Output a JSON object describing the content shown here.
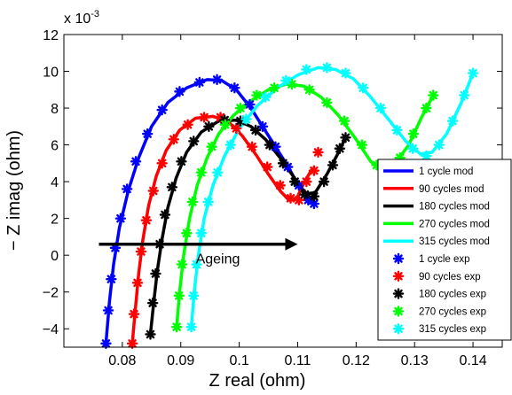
{
  "chart_data": {
    "type": "line",
    "title": "",
    "xlabel": "Z real (ohm)",
    "ylabel": "− Z imag (ohm)",
    "y_exponent_label": "x 10",
    "y_exponent_power": "-3",
    "xlim": [
      0.07,
      0.145
    ],
    "ylim": [
      -5,
      12
    ],
    "x_ticks": [
      0.08,
      0.09,
      0.1,
      0.11,
      0.12,
      0.13,
      0.14
    ],
    "x_tick_labels": [
      "0.08",
      "0.09",
      "0.1",
      "0.11",
      "0.12",
      "0.13",
      "0.14"
    ],
    "y_ticks": [
      -4,
      -2,
      0,
      2,
      4,
      6,
      8,
      10,
      12
    ],
    "y_tick_labels": [
      "−4",
      "−2",
      "0",
      "2",
      "4",
      "6",
      "8",
      "10",
      "12"
    ],
    "grid": false,
    "legend_position": "right",
    "annotation": {
      "text": "Ageing",
      "arrow_from": [
        0.076,
        0.6
      ],
      "arrow_to": [
        0.11,
        0.6
      ]
    },
    "series": [
      {
        "name": "1 cycle mod",
        "kind": "line",
        "color": "#0000ff",
        "points": [
          [
            0.0772,
            -4.8
          ],
          [
            0.0778,
            -2.5
          ],
          [
            0.0785,
            -0.5
          ],
          [
            0.0795,
            1.5
          ],
          [
            0.081,
            3.5
          ],
          [
            0.0828,
            5.3
          ],
          [
            0.085,
            7.0
          ],
          [
            0.0878,
            8.3
          ],
          [
            0.091,
            9.1
          ],
          [
            0.0945,
            9.55
          ],
          [
            0.097,
            9.5
          ],
          [
            0.0995,
            9.0
          ],
          [
            0.102,
            8.0
          ],
          [
            0.104,
            7.0
          ],
          [
            0.106,
            6.0
          ],
          [
            0.108,
            5.0
          ],
          [
            0.1098,
            4.0
          ],
          [
            0.111,
            3.4
          ],
          [
            0.112,
            3.0
          ],
          [
            0.113,
            3.1
          ]
        ]
      },
      {
        "name": "90 cycles mod",
        "kind": "line",
        "color": "#ff0000",
        "points": [
          [
            0.0817,
            -4.8
          ],
          [
            0.0822,
            -3.0
          ],
          [
            0.0828,
            -1.0
          ],
          [
            0.0835,
            0.8
          ],
          [
            0.0845,
            2.7
          ],
          [
            0.0858,
            4.3
          ],
          [
            0.0875,
            5.7
          ],
          [
            0.0898,
            6.8
          ],
          [
            0.0925,
            7.45
          ],
          [
            0.0955,
            7.55
          ],
          [
            0.098,
            7.3
          ],
          [
            0.1005,
            6.5
          ],
          [
            0.103,
            5.4
          ],
          [
            0.105,
            4.4
          ],
          [
            0.107,
            3.5
          ],
          [
            0.1085,
            3.0
          ],
          [
            0.1098,
            3.05
          ],
          [
            0.111,
            3.9
          ],
          [
            0.1125,
            4.7
          ]
        ]
      },
      {
        "name": "180 cycles mod",
        "kind": "line",
        "color": "#000000",
        "points": [
          [
            0.0848,
            -4.3
          ],
          [
            0.0854,
            -2.5
          ],
          [
            0.086,
            -0.8
          ],
          [
            0.0868,
            0.9
          ],
          [
            0.0878,
            2.6
          ],
          [
            0.0892,
            4.2
          ],
          [
            0.091,
            5.6
          ],
          [
            0.0935,
            6.7
          ],
          [
            0.0965,
            7.3
          ],
          [
            0.0995,
            7.35
          ],
          [
            0.102,
            7.0
          ],
          [
            0.1045,
            6.3
          ],
          [
            0.107,
            5.3
          ],
          [
            0.109,
            4.4
          ],
          [
            0.1105,
            3.7
          ],
          [
            0.1115,
            3.35
          ],
          [
            0.113,
            3.4
          ],
          [
            0.115,
            4.4
          ],
          [
            0.117,
            5.6
          ],
          [
            0.1182,
            6.4
          ]
        ]
      },
      {
        "name": "270 cycles mod",
        "kind": "line",
        "color": "#00ff00",
        "points": [
          [
            0.0893,
            -3.9
          ],
          [
            0.0898,
            -2.0
          ],
          [
            0.0905,
            0.0
          ],
          [
            0.0915,
            2.0
          ],
          [
            0.0928,
            3.8
          ],
          [
            0.0945,
            5.3
          ],
          [
            0.0965,
            6.6
          ],
          [
            0.099,
            7.6
          ],
          [
            0.102,
            8.4
          ],
          [
            0.105,
            9.0
          ],
          [
            0.108,
            9.3
          ],
          [
            0.111,
            9.2
          ],
          [
            0.114,
            8.6
          ],
          [
            0.117,
            7.6
          ],
          [
            0.12,
            6.3
          ],
          [
            0.1225,
            5.1
          ],
          [
            0.1245,
            4.6
          ],
          [
            0.1265,
            4.9
          ],
          [
            0.129,
            6.0
          ],
          [
            0.1312,
            7.5
          ],
          [
            0.1332,
            8.7
          ]
        ]
      },
      {
        "name": "315 cycles mod",
        "kind": "line",
        "color": "#00ffff",
        "points": [
          [
            0.0918,
            -3.9
          ],
          [
            0.0923,
            -2.0
          ],
          [
            0.093,
            0.0
          ],
          [
            0.094,
            2.0
          ],
          [
            0.0955,
            3.8
          ],
          [
            0.0975,
            5.4
          ],
          [
            0.1,
            6.9
          ],
          [
            0.103,
            8.1
          ],
          [
            0.1065,
            9.1
          ],
          [
            0.11,
            9.8
          ],
          [
            0.1135,
            10.2
          ],
          [
            0.1165,
            10.1
          ],
          [
            0.1195,
            9.6
          ],
          [
            0.1225,
            8.6
          ],
          [
            0.1255,
            7.4
          ],
          [
            0.1285,
            6.2
          ],
          [
            0.131,
            5.5
          ],
          [
            0.133,
            5.6
          ],
          [
            0.1355,
            6.6
          ],
          [
            0.138,
            8.3
          ],
          [
            0.14,
            9.9
          ]
        ]
      },
      {
        "name": "1 cycle exp",
        "kind": "marker",
        "color": "#0000ff",
        "points": [
          [
            0.0772,
            -4.8
          ],
          [
            0.0776,
            -3.0
          ],
          [
            0.0781,
            -1.3
          ],
          [
            0.0788,
            0.4
          ],
          [
            0.0797,
            2.0
          ],
          [
            0.0808,
            3.6
          ],
          [
            0.0823,
            5.1
          ],
          [
            0.0843,
            6.6
          ],
          [
            0.0868,
            7.9
          ],
          [
            0.0898,
            8.9
          ],
          [
            0.0932,
            9.4
          ],
          [
            0.0962,
            9.55
          ],
          [
            0.0992,
            9.1
          ],
          [
            0.1018,
            8.2
          ],
          [
            0.104,
            7.0
          ],
          [
            0.1062,
            5.9
          ],
          [
            0.1083,
            4.8
          ],
          [
            0.1102,
            3.8
          ],
          [
            0.1118,
            3.0
          ],
          [
            0.1128,
            2.8
          ]
        ]
      },
      {
        "name": "90 cycles exp",
        "kind": "marker",
        "color": "#ff0000",
        "points": [
          [
            0.0817,
            -4.8
          ],
          [
            0.082,
            -3.2
          ],
          [
            0.0826,
            -1.5
          ],
          [
            0.0832,
            0.2
          ],
          [
            0.0841,
            1.9
          ],
          [
            0.0853,
            3.5
          ],
          [
            0.0868,
            5.0
          ],
          [
            0.0888,
            6.3
          ],
          [
            0.0912,
            7.1
          ],
          [
            0.094,
            7.5
          ],
          [
            0.0968,
            7.5
          ],
          [
            0.0995,
            6.9
          ],
          [
            0.1022,
            5.9
          ],
          [
            0.1048,
            4.8
          ],
          [
            0.107,
            3.8
          ],
          [
            0.1088,
            3.1
          ],
          [
            0.1102,
            3.0
          ],
          [
            0.1115,
            4.0
          ],
          [
            0.1128,
            4.6
          ],
          [
            0.1135,
            5.6
          ]
        ]
      },
      {
        "name": "180 cycles exp",
        "kind": "marker",
        "color": "#000000",
        "points": [
          [
            0.0848,
            -4.3
          ],
          [
            0.0852,
            -2.6
          ],
          [
            0.0857,
            -1.0
          ],
          [
            0.0864,
            0.6
          ],
          [
            0.0873,
            2.2
          ],
          [
            0.0885,
            3.7
          ],
          [
            0.0901,
            5.1
          ],
          [
            0.0922,
            6.2
          ],
          [
            0.0948,
            7.0
          ],
          [
            0.0975,
            7.35
          ],
          [
            0.1002,
            7.3
          ],
          [
            0.1028,
            6.8
          ],
          [
            0.1052,
            6.0
          ],
          [
            0.1075,
            5.0
          ],
          [
            0.1095,
            4.0
          ],
          [
            0.1112,
            3.3
          ],
          [
            0.1128,
            3.2
          ],
          [
            0.1145,
            4.0
          ],
          [
            0.116,
            4.9
          ],
          [
            0.1172,
            5.8
          ],
          [
            0.1182,
            6.4
          ]
        ]
      },
      {
        "name": "270 cycles exp",
        "kind": "marker",
        "color": "#00ff00",
        "points": [
          [
            0.0893,
            -3.9
          ],
          [
            0.0897,
            -2.2
          ],
          [
            0.0902,
            -0.5
          ],
          [
            0.091,
            1.2
          ],
          [
            0.092,
            2.9
          ],
          [
            0.0935,
            4.5
          ],
          [
            0.0953,
            5.9
          ],
          [
            0.0976,
            7.1
          ],
          [
            0.1002,
            8.0
          ],
          [
            0.103,
            8.7
          ],
          [
            0.106,
            9.1
          ],
          [
            0.109,
            9.3
          ],
          [
            0.112,
            9.0
          ],
          [
            0.115,
            8.3
          ],
          [
            0.118,
            7.3
          ],
          [
            0.121,
            6.0
          ],
          [
            0.1235,
            4.9
          ],
          [
            0.1255,
            4.6
          ],
          [
            0.1275,
            5.3
          ],
          [
            0.1298,
            6.6
          ],
          [
            0.132,
            8.0
          ],
          [
            0.1332,
            8.7
          ]
        ]
      },
      {
        "name": "315 cycles exp",
        "kind": "marker",
        "color": "#00ffff",
        "points": [
          [
            0.0918,
            -3.9
          ],
          [
            0.0922,
            -2.2
          ],
          [
            0.0927,
            -0.5
          ],
          [
            0.0935,
            1.2
          ],
          [
            0.0947,
            2.9
          ],
          [
            0.0963,
            4.5
          ],
          [
            0.0985,
            6.0
          ],
          [
            0.1012,
            7.4
          ],
          [
            0.1045,
            8.6
          ],
          [
            0.108,
            9.5
          ],
          [
            0.1115,
            10.1
          ],
          [
            0.115,
            10.2
          ],
          [
            0.1182,
            9.9
          ],
          [
            0.1212,
            9.1
          ],
          [
            0.1242,
            8.0
          ],
          [
            0.127,
            6.8
          ],
          [
            0.1297,
            5.8
          ],
          [
            0.132,
            5.4
          ],
          [
            0.1342,
            6.0
          ],
          [
            0.1365,
            7.3
          ],
          [
            0.1385,
            8.7
          ],
          [
            0.14,
            9.9
          ]
        ]
      }
    ]
  }
}
